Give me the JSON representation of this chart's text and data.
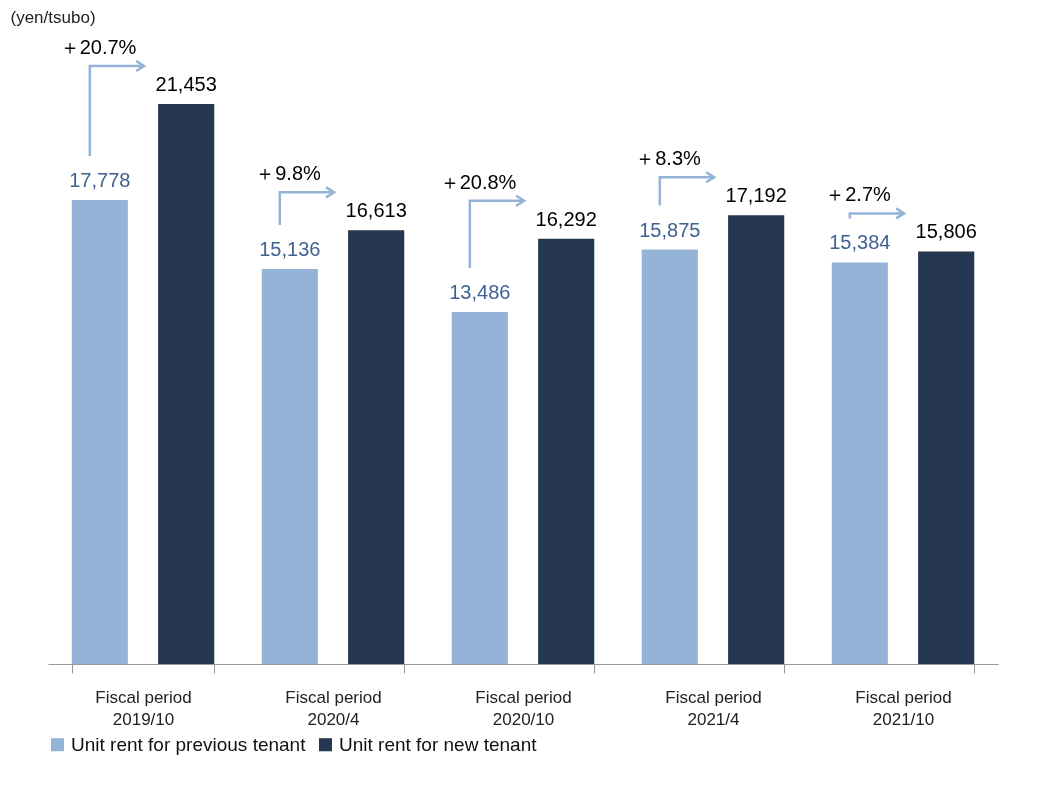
{
  "chart_data": {
    "type": "bar",
    "ylabel": "(yen/tsubo)",
    "categories": [
      "Fiscal period 2019/10",
      "Fiscal period 2020/4",
      "Fiscal period 2020/10",
      "Fiscal period 2021/4",
      "Fiscal period 2021/10"
    ],
    "series": [
      {
        "name": "Unit rent for previous tenant",
        "color": "#95b3d7",
        "values": [
          17778,
          15136,
          13486,
          15875,
          15384
        ],
        "value_labels": [
          "17,778",
          "15,136",
          "13,486",
          "15,875",
          "15,384"
        ]
      },
      {
        "name": "Unit rent for new tenant",
        "color": "#243650",
        "values": [
          21453,
          16613,
          16292,
          17192,
          15806
        ],
        "value_labels": [
          "21,453",
          "16,613",
          "16,292",
          "17,192",
          "15,806"
        ]
      }
    ],
    "legend": "bottom",
    "grid": false,
    "annotations": [
      "＋20.7%",
      "＋9.8%",
      "＋20.8%",
      "＋8.3%",
      "＋2.7%"
    ]
  }
}
